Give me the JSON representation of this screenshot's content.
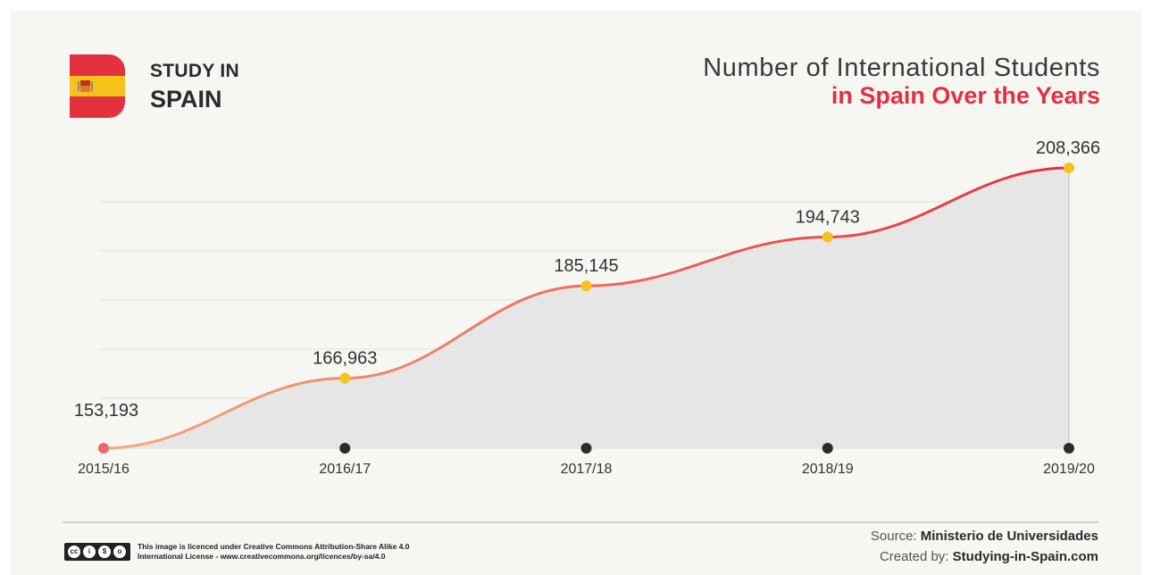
{
  "brand": {
    "line1": "STUDY IN",
    "line2": "SPAIN"
  },
  "title": {
    "line1": "Number of International Students",
    "line2": "in Spain Over the Years"
  },
  "colors": {
    "accent": "#e3313f",
    "gold": "#f6c21c",
    "line_start": "#f7a97b",
    "area": "#e6e6e6"
  },
  "chart_data": {
    "type": "area",
    "title": "Number of International Students in Spain Over the Years",
    "categories": [
      "2015/16",
      "2016/17",
      "2017/18",
      "2018/19",
      "2019/20"
    ],
    "values": [
      153193,
      166963,
      185145,
      194743,
      208366
    ],
    "value_labels": [
      "153,193",
      "166,963",
      "185,145",
      "194,743",
      "208,366"
    ],
    "ylim": [
      153193,
      208366
    ],
    "grid": true,
    "legend": "none"
  },
  "footer": {
    "licence_line1": "This image is licenced under Creative Commons Attribution-Share Alike 4.0",
    "licence_line2": "International License - www.creativecommons.org/licences/by-sa/4.0",
    "source_label": "Source:",
    "source_value": "Ministerio de Universidades",
    "created_label": "Created by:",
    "created_value": "Studying-in-Spain.com"
  }
}
